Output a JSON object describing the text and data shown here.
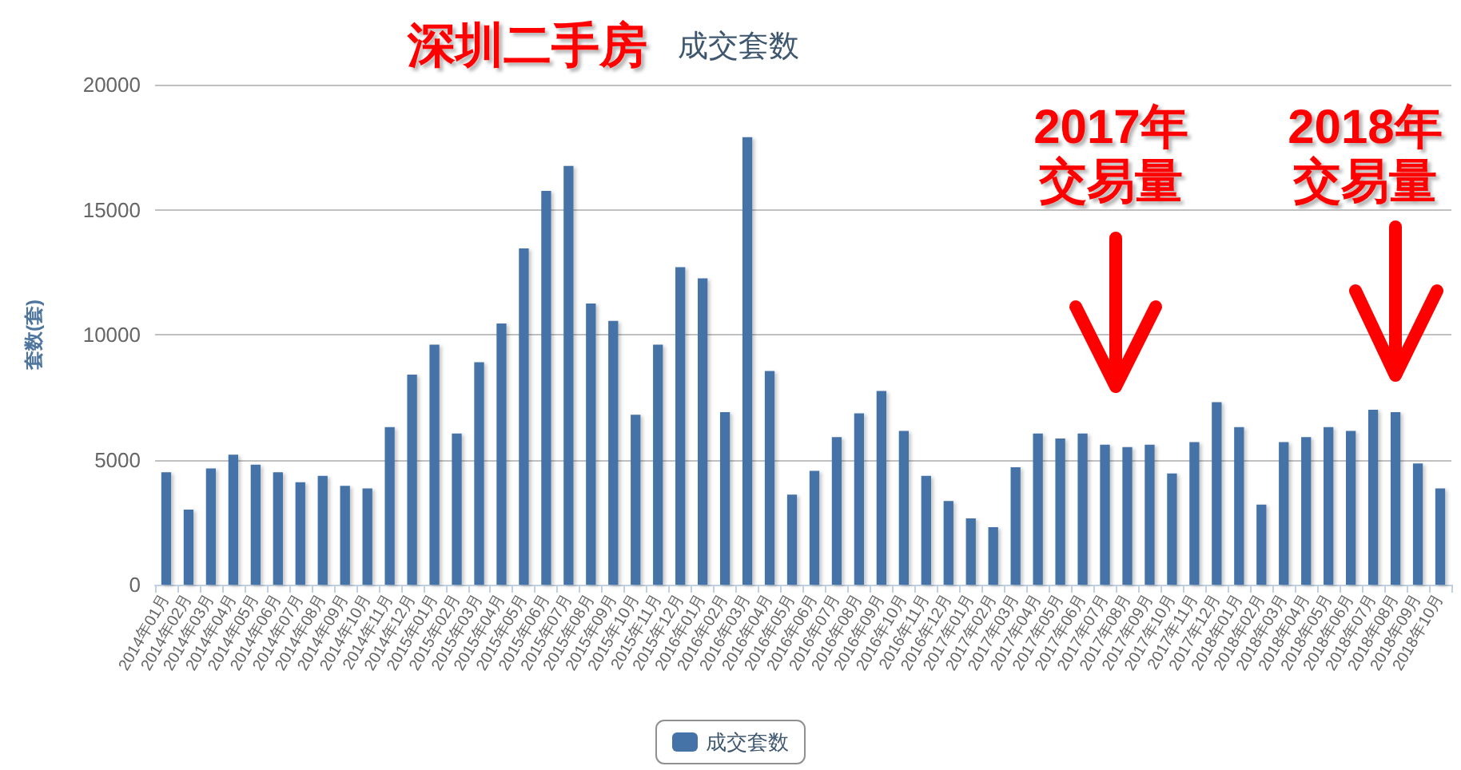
{
  "chart_data": {
    "type": "bar",
    "title": "深圳二手房",
    "subtitle": "成交套数",
    "ylabel": "套数(套)",
    "annotations": [
      "2017年交易量",
      "2018年交易量"
    ],
    "categories": [
      "2014年01月",
      "2014年02月",
      "2014年03月",
      "2014年04月",
      "2014年05月",
      "2014年06月",
      "2014年07月",
      "2014年08月",
      "2014年09月",
      "2014年10月",
      "2014年11月",
      "2014年12月",
      "2015年01月",
      "2015年02月",
      "2015年03月",
      "2015年04月",
      "2015年05月",
      "2015年06月",
      "2015年07月",
      "2015年08月",
      "2015年09月",
      "2015年10月",
      "2015年11月",
      "2015年12月",
      "2016年01月",
      "2016年02月",
      "2016年03月",
      "2016年04月",
      "2016年05月",
      "2016年06月",
      "2016年07月",
      "2016年08月",
      "2016年09月",
      "2016年10月",
      "2016年11月",
      "2016年12月",
      "2017年01月",
      "2017年02月",
      "2017年03月",
      "2017年04月",
      "2017年05月",
      "2017年06月",
      "2017年07月",
      "2017年08月",
      "2017年09月",
      "2017年10月",
      "2017年11月",
      "2017年12月",
      "2018年01月",
      "2018年02月",
      "2018年03月",
      "2018年04月",
      "2018年05月",
      "2018年06月",
      "2018年07月",
      "2018年08月",
      "2018年09月",
      "2018年10月"
    ],
    "series": [
      {
        "name": "成交套数",
        "color": "#4572a7",
        "values": [
          4500,
          3000,
          4650,
          5200,
          4800,
          4500,
          4100,
          4350,
          3950,
          3850,
          6300,
          8400,
          9600,
          6050,
          8900,
          10450,
          13450,
          15750,
          16750,
          11250,
          10550,
          6800,
          9600,
          12700,
          12250,
          6900,
          17900,
          8550,
          3600,
          4550,
          5900,
          6850,
          7750,
          6150,
          4350,
          3350,
          2650,
          2300,
          4700,
          6050,
          5850,
          6050,
          5600,
          5500,
          5600,
          4450,
          5700,
          7300,
          6300,
          3200,
          5700,
          5900,
          6300,
          6150,
          7000,
          6900,
          4850,
          3850
        ]
      }
    ],
    "ylim": [
      0,
      20000
    ],
    "yticks": [
      0,
      5000,
      10000,
      15000,
      20000
    ],
    "grid": "y",
    "legend": "bottom"
  }
}
